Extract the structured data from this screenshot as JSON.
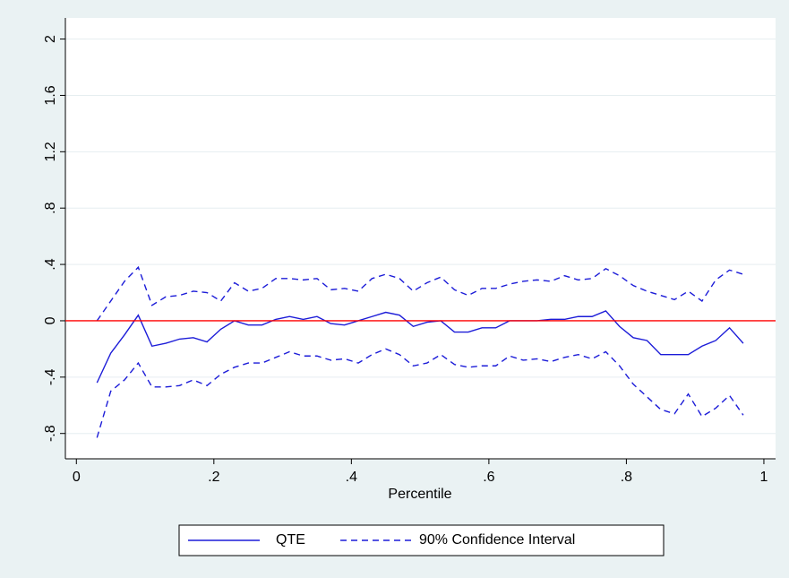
{
  "chart_data": {
    "type": "line",
    "xlabel": "Percentile",
    "x": [
      0.03,
      0.05,
      0.07,
      0.09,
      0.11,
      0.13,
      0.15,
      0.17,
      0.19,
      0.21,
      0.23,
      0.25,
      0.27,
      0.29,
      0.31,
      0.33,
      0.35,
      0.37,
      0.39,
      0.41,
      0.43,
      0.45,
      0.47,
      0.49,
      0.51,
      0.53,
      0.55,
      0.57,
      0.59,
      0.61,
      0.63,
      0.65,
      0.67,
      0.69,
      0.71,
      0.73,
      0.75,
      0.77,
      0.79,
      0.81,
      0.83,
      0.85,
      0.87,
      0.89,
      0.91,
      0.93,
      0.95,
      0.97
    ],
    "series": [
      {
        "name": "QTE",
        "color": "#1c1cd8",
        "dashed": false,
        "values": [
          -0.44,
          -0.23,
          -0.1,
          0.04,
          -0.18,
          -0.16,
          -0.13,
          -0.12,
          -0.15,
          -0.06,
          0.0,
          -0.03,
          -0.03,
          0.01,
          0.03,
          0.01,
          0.03,
          -0.02,
          -0.03,
          0.0,
          0.03,
          0.06,
          0.04,
          -0.04,
          -0.01,
          0.0,
          -0.08,
          -0.08,
          -0.05,
          -0.05,
          0.0,
          0.0,
          0.0,
          0.01,
          0.01,
          0.03,
          0.03,
          0.07,
          -0.04,
          -0.12,
          -0.14,
          -0.24,
          -0.24,
          -0.24,
          -0.18,
          -0.14,
          -0.05,
          -0.16
        ]
      },
      {
        "name": "90% Confidence Interval",
        "color": "#1c1cd8",
        "dashed": true,
        "upper": [
          0.0,
          0.14,
          0.28,
          0.38,
          0.11,
          0.17,
          0.18,
          0.21,
          0.2,
          0.14,
          0.27,
          0.21,
          0.23,
          0.3,
          0.3,
          0.29,
          0.3,
          0.22,
          0.23,
          0.21,
          0.3,
          0.33,
          0.3,
          0.21,
          0.27,
          0.31,
          0.22,
          0.18,
          0.23,
          0.23,
          0.26,
          0.28,
          0.29,
          0.28,
          0.32,
          0.29,
          0.3,
          0.37,
          0.32,
          0.25,
          0.21,
          0.18,
          0.15,
          0.21,
          0.14,
          0.29,
          0.36,
          0.33
        ],
        "lower": [
          -0.83,
          -0.5,
          -0.42,
          -0.3,
          -0.47,
          -0.47,
          -0.46,
          -0.42,
          -0.46,
          -0.38,
          -0.33,
          -0.3,
          -0.3,
          -0.26,
          -0.22,
          -0.25,
          -0.25,
          -0.28,
          -0.27,
          -0.3,
          -0.24,
          -0.2,
          -0.24,
          -0.32,
          -0.3,
          -0.24,
          -0.31,
          -0.33,
          -0.32,
          -0.32,
          -0.25,
          -0.28,
          -0.27,
          -0.29,
          -0.26,
          -0.24,
          -0.27,
          -0.22,
          -0.32,
          -0.45,
          -0.54,
          -0.63,
          -0.66,
          -0.52,
          -0.68,
          -0.62,
          -0.53,
          -0.67
        ]
      }
    ],
    "hline": {
      "value": 0,
      "color": "#ff0000"
    },
    "xlim": [
      -0.016,
      1.017
    ],
    "ylim": [
      -0.98,
      2.15
    ],
    "xticks": [
      0,
      {
        "value": 0.2,
        "label": ".2"
      },
      {
        "value": 0.4,
        "label": ".4"
      },
      {
        "value": 0.6,
        "label": ".6"
      },
      {
        "value": 0.8,
        "label": ".8"
      },
      1
    ],
    "yticks": [
      {
        "value": -0.8,
        "label": "-.8"
      },
      {
        "value": -0.4,
        "label": "-.4"
      },
      0,
      {
        "value": 0.4,
        "label": ".4"
      },
      {
        "value": 0.8,
        "label": ".8"
      },
      1.2,
      1.6,
      2
    ],
    "grid": true
  }
}
